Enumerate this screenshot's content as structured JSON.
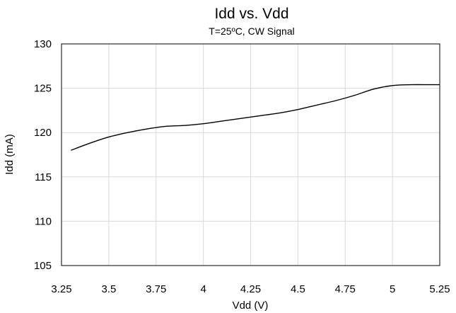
{
  "chart_data": {
    "type": "line",
    "title": "Idd vs. Vdd",
    "subtitle": "T=25ºC, CW Signal",
    "xlabel": "Vdd (V)",
    "ylabel": "Idd (mA)",
    "xlim": [
      3.25,
      5.25
    ],
    "ylim": [
      105,
      130
    ],
    "xticks": [
      "3.25",
      "3.5",
      "3.75",
      "4",
      "4.25",
      "4.5",
      "4.75",
      "5",
      "5.25"
    ],
    "yticks": [
      "105",
      "110",
      "115",
      "120",
      "125",
      "130"
    ],
    "grid": true,
    "legend": "none",
    "series": [
      {
        "x": [
          3.3,
          3.4,
          3.5,
          3.6,
          3.7,
          3.8,
          3.9,
          4.0,
          4.1,
          4.2,
          4.3,
          4.4,
          4.5,
          4.6,
          4.7,
          4.8,
          4.9,
          5.0,
          5.1,
          5.2,
          5.25
        ],
        "y": [
          118.0,
          118.8,
          119.5,
          120.0,
          120.4,
          120.7,
          120.8,
          121.0,
          121.3,
          121.6,
          121.9,
          122.2,
          122.6,
          123.1,
          123.6,
          124.2,
          124.9,
          125.3,
          125.4,
          125.4,
          125.4
        ]
      }
    ],
    "colors": {
      "line": "#000000",
      "grid": "#d9d9d9",
      "frame": "#000000"
    }
  }
}
